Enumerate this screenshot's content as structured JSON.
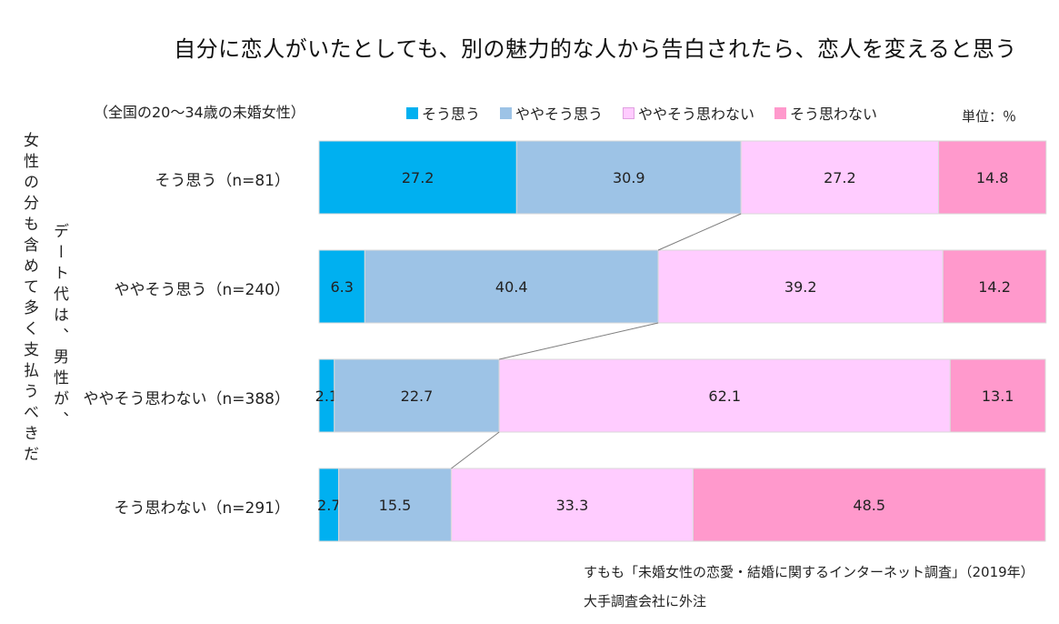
{
  "title": "自分に恋人がいたとしても、別の魅力的な人から告白されたら、恋人を変えると思う",
  "subtitle": "（全国の20～34歳の未婚女性）",
  "unit": "単位：％",
  "y_axis_title_outer": "女性の分も含めて多く支払うべきだ",
  "y_axis_title_inner": "デート代は、男性が、",
  "source_line1": "すもも「未婚女性の恋愛・結婚に関するインターネット調査」（2019年）",
  "source_line2": "大手調査会社に外注",
  "colors": {
    "so_omou": "#00b0f0",
    "yaya_so_omou": "#9dc3e6",
    "yaya_so_omowanai": "#ffccff",
    "so_omowanai": "#ff99cc",
    "connector": "#7f7f7f"
  },
  "chart_data": {
    "type": "bar",
    "orientation": "horizontal",
    "stacked": true,
    "xlim": [
      0,
      100
    ],
    "categories": [
      "そう思う（n=81）",
      "ややそう思う（n=240）",
      "ややそう思わない（n=388）",
      "そう思わない（n=291）"
    ],
    "series": [
      {
        "name": "そう思う",
        "values": [
          27.2,
          6.3,
          2.1,
          2.7
        ]
      },
      {
        "name": "ややそう思う",
        "values": [
          30.9,
          40.4,
          22.7,
          15.5
        ]
      },
      {
        "name": "ややそう思わない",
        "values": [
          27.2,
          39.2,
          62.1,
          33.3
        ]
      },
      {
        "name": "そう思わない",
        "values": [
          14.8,
          14.2,
          13.1,
          48.5
        ]
      }
    ],
    "legend_position": "top"
  }
}
